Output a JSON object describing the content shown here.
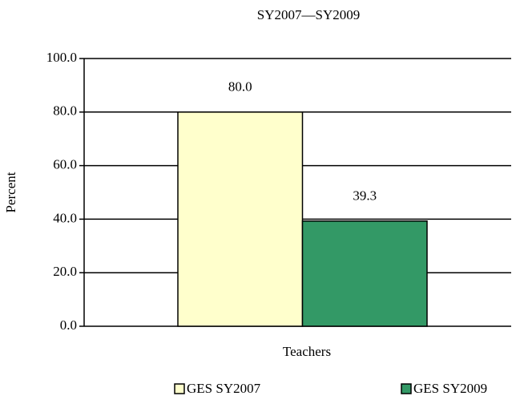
{
  "chart_data": {
    "type": "bar",
    "title": "SY2007—SY2009",
    "ylabel": "Percent",
    "xlabel": "Teachers",
    "categories": [
      "Teachers"
    ],
    "series": [
      {
        "name": "GES SY2007",
        "color": "#ffffcc",
        "values": [
          80.0
        ],
        "value_labels": [
          "80.0"
        ]
      },
      {
        "name": "GES SY2009",
        "color": "#339966",
        "values": [
          39.3
        ],
        "value_labels": [
          "39.3"
        ]
      }
    ],
    "ylim": [
      0,
      100
    ],
    "yticks": [
      {
        "value": 0,
        "label": "0.0"
      },
      {
        "value": 20,
        "label": "20.0"
      },
      {
        "value": 40,
        "label": "40.0"
      },
      {
        "value": 60,
        "label": "60.0"
      },
      {
        "value": 80,
        "label": "80.0"
      },
      {
        "value": 100,
        "label": "100.0"
      }
    ],
    "grid": true,
    "legend": "bottom"
  }
}
